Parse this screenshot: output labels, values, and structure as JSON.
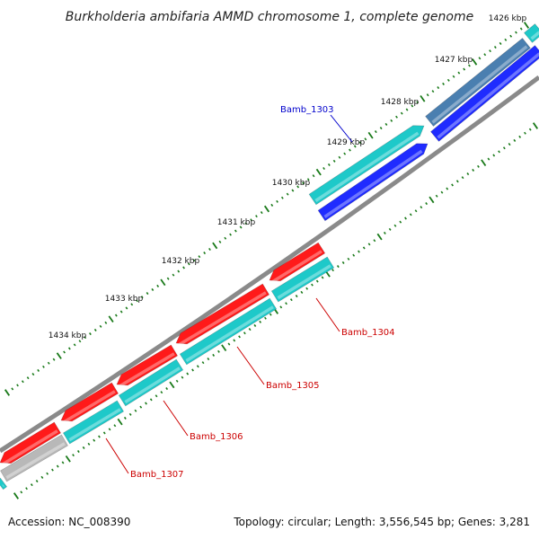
{
  "title": "Burkholderia ambifaria AMMD chromosome 1, complete genome",
  "footer": {
    "accession": "Accession: NC_008390",
    "topology": "Topology: circular; Length: 3,556,545 bp; Genes: 3,281"
  },
  "colors": {
    "forward_gene": "#1f2bff",
    "forward_gene_alt": "#4a7fb0",
    "cds_cyan": "#1ec9c9",
    "reverse_gene": "#ff1a1a",
    "pseudo_gene": "#b8b8b8",
    "backbone": "#888888",
    "tick": "#1a7a1a",
    "label_blue": "#0000cc",
    "label_red": "#cc0000"
  },
  "kbp_labels": [
    "1426 kbp",
    "1427 kbp",
    "1428 kbp",
    "1429 kbp",
    "1430 kbp",
    "1431 kbp",
    "1432 kbp",
    "1433 kbp",
    "1434 kbp"
  ],
  "gene_labels": [
    {
      "name": "Bamb_1303",
      "strand": "forward"
    },
    {
      "name": "Bamb_1304",
      "strand": "reverse"
    },
    {
      "name": "Bamb_1305",
      "strand": "reverse"
    },
    {
      "name": "Bamb_1306",
      "strand": "reverse"
    },
    {
      "name": "Bamb_1307",
      "strand": "reverse"
    }
  ]
}
